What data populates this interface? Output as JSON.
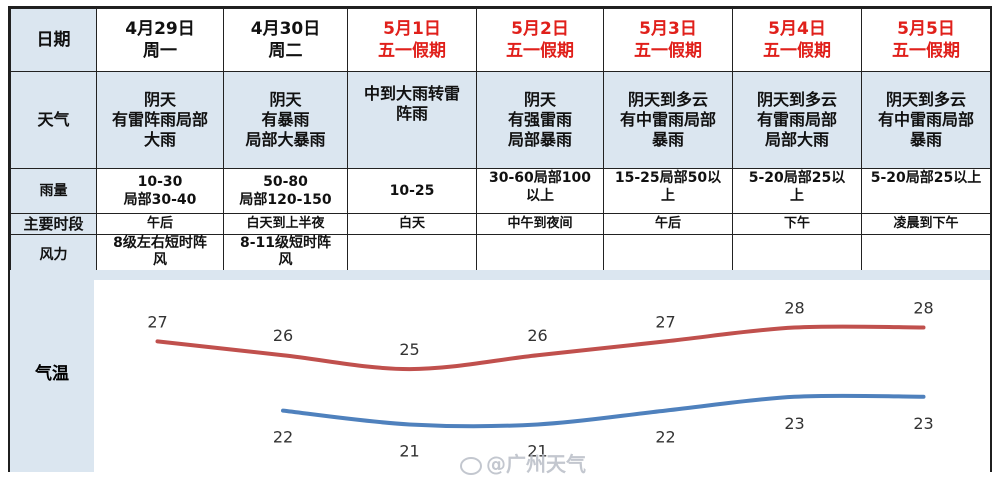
{
  "labels": {
    "date": "日期",
    "weather": "天气",
    "rain": "雨量",
    "period": "主要时段",
    "wind": "风力",
    "temp": "气温"
  },
  "days": [
    {
      "date": "4月29日",
      "sub": "周一",
      "holiday": false,
      "weather": [
        "阴天",
        "有雷阵雨局部",
        "大雨"
      ],
      "rain": [
        "10-30",
        "局部30-40"
      ],
      "period": "午后",
      "wind": [
        "8级左右短时阵",
        "风"
      ]
    },
    {
      "date": "4月30日",
      "sub": "周二",
      "holiday": false,
      "weather": [
        "阴天",
        "有暴雨",
        "局部大暴雨"
      ],
      "rain": [
        "50-80",
        "局部120-150"
      ],
      "period": "白天到上半夜",
      "wind": [
        "8-11级短时阵",
        "风"
      ]
    },
    {
      "date": "5月1日",
      "sub": "五一假期",
      "holiday": true,
      "weather": [
        "中到大雨转雷",
        "阵雨"
      ],
      "rain": [
        "10-25"
      ],
      "period": "白天",
      "wind": []
    },
    {
      "date": "5月2日",
      "sub": "五一假期",
      "holiday": true,
      "weather": [
        "阴天",
        "有强雷雨",
        "局部暴雨"
      ],
      "rain": [
        "30-60局部100",
        "以上"
      ],
      "period": "中午到夜间",
      "wind": []
    },
    {
      "date": "5月3日",
      "sub": "五一假期",
      "holiday": true,
      "weather": [
        "阴天到多云",
        "有中雷雨局部",
        "暴雨"
      ],
      "rain": [
        "15-25局部50以",
        "上"
      ],
      "period": "午后",
      "wind": []
    },
    {
      "date": "5月4日",
      "sub": "五一假期",
      "holiday": true,
      "weather": [
        "阴天到多云",
        "有雷雨局部",
        "局部大雨"
      ],
      "rain": [
        "5-20局部25以",
        "上"
      ],
      "period": "下午",
      "wind": []
    },
    {
      "date": "5月5日",
      "sub": "五一假期",
      "holiday": true,
      "weather": [
        "阴天到多云",
        "有中雷雨局部",
        "暴雨"
      ],
      "rain": [
        "5-20局部25以上"
      ],
      "period": "凌晨到下午",
      "wind": []
    }
  ],
  "chart_data": {
    "type": "line",
    "categories": [
      "4月29日",
      "4月30日",
      "5月1日",
      "5月2日",
      "5月3日",
      "5月4日",
      "5月5日"
    ],
    "series": [
      {
        "name": "",
        "color": "#c0504d",
        "values": [
          27,
          26,
          25,
          26,
          27,
          28,
          28
        ]
      },
      {
        "name": "",
        "color": "#4f81bd",
        "values": [
          null,
          22,
          21,
          21,
          22,
          23,
          23
        ]
      }
    ],
    "ylim": [
      18,
      31
    ]
  },
  "colors": {
    "holiday": "#e0201b",
    "label_bg": "#dbe6f0",
    "high": "#c0504d",
    "low": "#4f81bd"
  },
  "watermark": "@广州天气"
}
